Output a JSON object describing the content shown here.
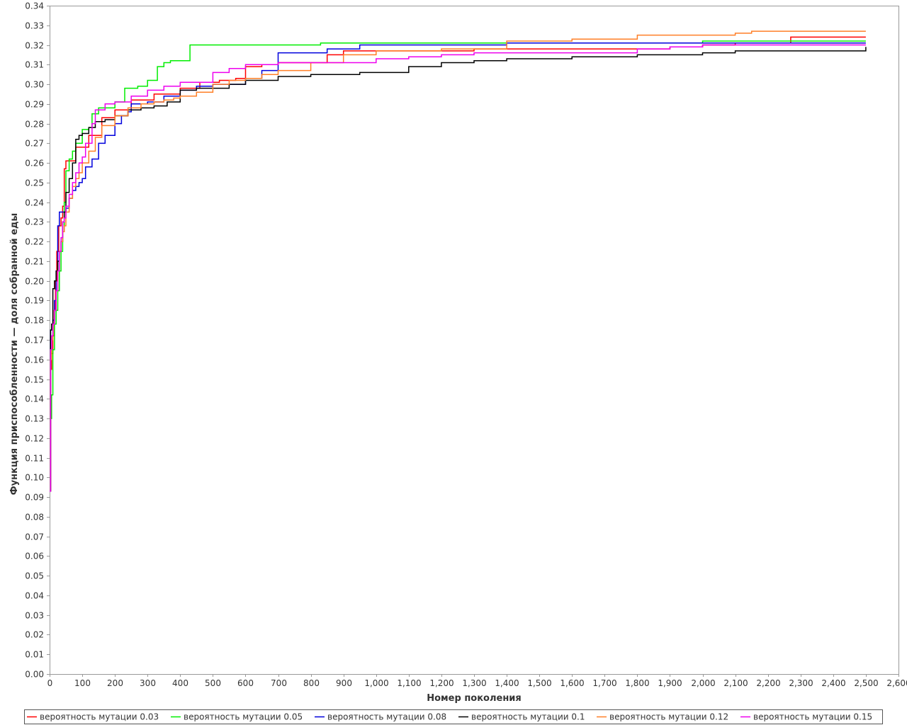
{
  "chart_data": {
    "type": "line",
    "title": "",
    "xlabel": "Номер поколения",
    "ylabel": "Функция приспособленности — доля собранной еды",
    "xlim": [
      0,
      2600
    ],
    "ylim": [
      0,
      0.34
    ],
    "x_ticks": [
      0,
      100,
      200,
      300,
      400,
      500,
      600,
      700,
      800,
      900,
      1000,
      1100,
      1200,
      1300,
      1400,
      1500,
      1600,
      1700,
      1800,
      1900,
      2000,
      2100,
      2200,
      2300,
      2400,
      2500,
      2600
    ],
    "x_tick_labels": [
      "0",
      "100",
      "200",
      "300",
      "400",
      "500",
      "600",
      "700",
      "800",
      "900",
      "1,000",
      "1,100",
      "1,200",
      "1,300",
      "1,400",
      "1,500",
      "1,600",
      "1,700",
      "1,800",
      "1,900",
      "2,000",
      "2,100",
      "2,200",
      "2,300",
      "2,400",
      "2,500",
      "2,600"
    ],
    "y_ticks": [
      0,
      0.01,
      0.02,
      0.03,
      0.04,
      0.05,
      0.06,
      0.07,
      0.08,
      0.09,
      0.1,
      0.11,
      0.12,
      0.13,
      0.14,
      0.15,
      0.16,
      0.17,
      0.18,
      0.19,
      0.2,
      0.21,
      0.22,
      0.23,
      0.24,
      0.25,
      0.26,
      0.27,
      0.28,
      0.29,
      0.3,
      0.31,
      0.32,
      0.33,
      0.34
    ],
    "y_tick_labels": [
      "0.00",
      "0.01",
      "0.02",
      "0.03",
      "0.04",
      "0.05",
      "0.06",
      "0.07",
      "0.08",
      "0.09",
      "0.10",
      "0.11",
      "0.12",
      "0.13",
      "0.14",
      "0.15",
      "0.16",
      "0.17",
      "0.18",
      "0.19",
      "0.20",
      "0.21",
      "0.22",
      "0.23",
      "0.24",
      "0.25",
      "0.26",
      "0.27",
      "0.28",
      "0.29",
      "0.30",
      "0.31",
      "0.32",
      "0.33",
      "0.34"
    ],
    "grid": false,
    "legend_position": "bottom",
    "step": true,
    "series": [
      {
        "name": "вероятность мутации 0.03",
        "color": "#ff0000",
        "x": [
          0,
          3,
          6,
          10,
          14,
          18,
          22,
          28,
          35,
          40,
          45,
          50,
          80,
          120,
          160,
          200,
          250,
          320,
          400,
          460,
          520,
          570,
          600,
          650,
          700,
          800,
          850,
          900,
          1000,
          1100,
          1200,
          1300,
          1400,
          1600,
          1800,
          1900,
          2000,
          2100,
          2200,
          2270,
          2500
        ],
        "y": [
          0.093,
          0.155,
          0.163,
          0.172,
          0.185,
          0.2,
          0.215,
          0.228,
          0.232,
          0.238,
          0.257,
          0.261,
          0.268,
          0.274,
          0.283,
          0.287,
          0.292,
          0.295,
          0.298,
          0.301,
          0.302,
          0.303,
          0.309,
          0.31,
          0.311,
          0.311,
          0.315,
          0.317,
          0.317,
          0.317,
          0.317,
          0.318,
          0.318,
          0.318,
          0.318,
          0.319,
          0.32,
          0.321,
          0.321,
          0.324,
          0.324
        ]
      },
      {
        "name": "вероятность мутации 0.05",
        "color": "#00ee00",
        "x": [
          0,
          3,
          6,
          10,
          15,
          20,
          25,
          30,
          35,
          40,
          45,
          50,
          60,
          70,
          80,
          100,
          120,
          130,
          150,
          200,
          230,
          270,
          300,
          330,
          350,
          370,
          430,
          500,
          580,
          700,
          830,
          950,
          1100,
          1400,
          1600,
          1800,
          2000,
          2500
        ],
        "y": [
          0.093,
          0.13,
          0.142,
          0.165,
          0.178,
          0.185,
          0.195,
          0.205,
          0.215,
          0.225,
          0.24,
          0.256,
          0.262,
          0.266,
          0.27,
          0.277,
          0.278,
          0.285,
          0.288,
          0.291,
          0.298,
          0.299,
          0.302,
          0.309,
          0.311,
          0.312,
          0.32,
          0.32,
          0.32,
          0.32,
          0.321,
          0.321,
          0.321,
          0.321,
          0.321,
          0.321,
          0.322,
          0.322
        ]
      },
      {
        "name": "вероятность мутации 0.08",
        "color": "#0000dd",
        "x": [
          0,
          3,
          6,
          10,
          15,
          20,
          25,
          30,
          35,
          40,
          45,
          50,
          60,
          70,
          80,
          90,
          100,
          110,
          130,
          150,
          170,
          200,
          220,
          240,
          250,
          300,
          350,
          400,
          450,
          500,
          600,
          650,
          700,
          850,
          950,
          1100,
          1400,
          1800,
          2000,
          2500
        ],
        "y": [
          0.093,
          0.175,
          0.178,
          0.18,
          0.19,
          0.205,
          0.228,
          0.235,
          0.235,
          0.235,
          0.235,
          0.237,
          0.242,
          0.246,
          0.248,
          0.25,
          0.252,
          0.258,
          0.262,
          0.27,
          0.274,
          0.28,
          0.284,
          0.286,
          0.29,
          0.291,
          0.294,
          0.297,
          0.299,
          0.3,
          0.303,
          0.307,
          0.316,
          0.318,
          0.32,
          0.32,
          0.321,
          0.321,
          0.321,
          0.321
        ]
      },
      {
        "name": "вероятность мутации 0.1",
        "color": "#000000",
        "x": [
          0,
          3,
          6,
          10,
          15,
          20,
          25,
          30,
          35,
          40,
          45,
          50,
          60,
          70,
          80,
          90,
          100,
          120,
          140,
          170,
          200,
          240,
          280,
          320,
          360,
          400,
          450,
          500,
          550,
          600,
          700,
          800,
          950,
          1100,
          1200,
          1300,
          1400,
          1600,
          1800,
          2000,
          2100,
          2500
        ],
        "y": [
          0.093,
          0.175,
          0.178,
          0.196,
          0.2,
          0.205,
          0.21,
          0.215,
          0.22,
          0.23,
          0.235,
          0.245,
          0.252,
          0.26,
          0.272,
          0.274,
          0.275,
          0.278,
          0.281,
          0.282,
          0.284,
          0.287,
          0.288,
          0.289,
          0.291,
          0.297,
          0.298,
          0.298,
          0.3,
          0.302,
          0.304,
          0.305,
          0.306,
          0.309,
          0.311,
          0.312,
          0.313,
          0.314,
          0.315,
          0.316,
          0.317,
          0.319
        ]
      },
      {
        "name": "вероятность мутации 0.12",
        "color": "#ff7f27",
        "x": [
          0,
          3,
          6,
          10,
          15,
          20,
          25,
          30,
          35,
          40,
          45,
          50,
          60,
          70,
          80,
          90,
          100,
          120,
          140,
          160,
          200,
          240,
          280,
          320,
          350,
          380,
          400,
          450,
          500,
          550,
          600,
          650,
          700,
          800,
          900,
          1000,
          1200,
          1400,
          1600,
          1800,
          2000,
          2100,
          2150,
          2500
        ],
        "y": [
          0.093,
          0.16,
          0.17,
          0.178,
          0.185,
          0.195,
          0.205,
          0.215,
          0.22,
          0.225,
          0.228,
          0.235,
          0.242,
          0.248,
          0.252,
          0.255,
          0.26,
          0.266,
          0.273,
          0.279,
          0.284,
          0.288,
          0.29,
          0.291,
          0.292,
          0.293,
          0.294,
          0.296,
          0.3,
          0.302,
          0.303,
          0.305,
          0.307,
          0.311,
          0.315,
          0.317,
          0.318,
          0.322,
          0.323,
          0.325,
          0.325,
          0.326,
          0.327,
          0.327
        ]
      },
      {
        "name": "вероятность мутации 0.15",
        "color": "#ee00ee",
        "x": [
          0,
          3,
          6,
          10,
          15,
          20,
          25,
          30,
          35,
          40,
          45,
          50,
          60,
          70,
          80,
          90,
          100,
          110,
          130,
          140,
          170,
          200,
          250,
          300,
          350,
          400,
          500,
          550,
          600,
          700,
          800,
          900,
          1000,
          1100,
          1200,
          1300,
          1500,
          1800,
          1900,
          2000,
          2500
        ],
        "y": [
          0.093,
          0.165,
          0.172,
          0.178,
          0.185,
          0.195,
          0.205,
          0.215,
          0.222,
          0.23,
          0.232,
          0.238,
          0.244,
          0.25,
          0.255,
          0.26,
          0.263,
          0.27,
          0.28,
          0.287,
          0.29,
          0.291,
          0.294,
          0.297,
          0.299,
          0.301,
          0.306,
          0.308,
          0.31,
          0.311,
          0.311,
          0.311,
          0.313,
          0.314,
          0.315,
          0.316,
          0.316,
          0.318,
          0.319,
          0.32,
          0.32
        ]
      }
    ]
  }
}
